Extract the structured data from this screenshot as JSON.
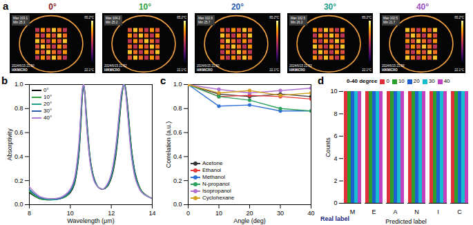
{
  "chart_data": [
    {
      "type": "image",
      "panel": "a",
      "max_label": "Max",
      "min_label": "Min",
      "brand": "HIKMICRO",
      "scale_max": "65.2°C",
      "scale_min": "22.1°C",
      "images": [
        {
          "title": "0°",
          "color": "#8b1c1c",
          "max": 103.1,
          "min": 25.3,
          "time": "2024/6/15 21:50"
        },
        {
          "title": "10°",
          "color": "#2e9e3e",
          "max": 104.2,
          "min": 25.2,
          "time": "2024/6/15 21:52"
        },
        {
          "title": "20°",
          "color": "#2a5db0",
          "max": 102.6,
          "min": 25.7,
          "time": "2024/6/15 21:50"
        },
        {
          "title": "30°",
          "color": "#1f9e8a",
          "max": 102.5,
          "min": 26.3,
          "time": "2024/6/15 21:53"
        },
        {
          "title": "40°",
          "color": "#9a4fc0",
          "max": 102.5,
          "min": 21.7,
          "time": "2024/6/15 21:59"
        }
      ]
    },
    {
      "type": "line",
      "panel": "b",
      "x_label": "Wavelength (μm)",
      "y_label": "Absorptivity",
      "legend": "upper left",
      "x": [
        8,
        8.5,
        9,
        9.5,
        9.8,
        10,
        10.2,
        10.4,
        10.5,
        10.6,
        10.65,
        10.7,
        10.8,
        11,
        11.2,
        11.4,
        11.6,
        11.8,
        12,
        12.2,
        12.4,
        12.5,
        12.6,
        12.65,
        12.7,
        12.8,
        13,
        13.2,
        13.5,
        14
      ],
      "series": [
        {
          "name": "0°",
          "color": "#000000",
          "values": [
            0.1,
            0.05,
            0.04,
            0.05,
            0.07,
            0.1,
            0.17,
            0.38,
            0.62,
            0.93,
            1.0,
            0.95,
            0.72,
            0.35,
            0.2,
            0.14,
            0.13,
            0.15,
            0.22,
            0.38,
            0.7,
            0.88,
            0.99,
            1.0,
            0.97,
            0.82,
            0.45,
            0.24,
            0.11,
            0.05
          ]
        },
        {
          "name": "10°",
          "color": "#2e9e3e",
          "values": [
            0.11,
            0.05,
            0.04,
            0.05,
            0.07,
            0.11,
            0.18,
            0.4,
            0.65,
            0.95,
            1.0,
            0.94,
            0.7,
            0.34,
            0.2,
            0.14,
            0.13,
            0.15,
            0.23,
            0.4,
            0.72,
            0.9,
            0.99,
            1.0,
            0.96,
            0.8,
            0.44,
            0.23,
            0.11,
            0.05
          ]
        },
        {
          "name": "20°",
          "color": "#1f9e8a",
          "values": [
            0.12,
            0.06,
            0.04,
            0.05,
            0.08,
            0.11,
            0.19,
            0.42,
            0.68,
            0.96,
            1.0,
            0.93,
            0.68,
            0.33,
            0.19,
            0.14,
            0.13,
            0.16,
            0.24,
            0.42,
            0.74,
            0.91,
            1.0,
            0.99,
            0.95,
            0.78,
            0.42,
            0.22,
            0.1,
            0.05
          ]
        },
        {
          "name": "30°",
          "color": "#2a5db0",
          "values": [
            0.13,
            0.06,
            0.05,
            0.05,
            0.08,
            0.12,
            0.2,
            0.45,
            0.71,
            0.97,
            1.0,
            0.92,
            0.66,
            0.32,
            0.19,
            0.14,
            0.13,
            0.16,
            0.25,
            0.44,
            0.77,
            0.93,
            1.0,
            0.99,
            0.94,
            0.76,
            0.4,
            0.21,
            0.1,
            0.05
          ]
        },
        {
          "name": "40°",
          "color": "#b07fd0",
          "values": [
            0.15,
            0.07,
            0.05,
            0.06,
            0.09,
            0.13,
            0.22,
            0.48,
            0.74,
            0.98,
            1.0,
            0.91,
            0.64,
            0.31,
            0.18,
            0.14,
            0.13,
            0.17,
            0.26,
            0.46,
            0.79,
            0.94,
            1.0,
            0.98,
            0.93,
            0.74,
            0.38,
            0.2,
            0.1,
            0.05
          ]
        }
      ],
      "xlim": [
        8,
        14
      ],
      "xticks": [
        8,
        10,
        12,
        14
      ],
      "ylim": [
        0,
        1.0
      ],
      "yticks": [
        {
          "value": 0,
          "label": "0.0"
        },
        {
          "value": 0.2,
          "label": "0.2"
        },
        {
          "value": 0.4,
          "label": "0.4"
        },
        {
          "value": 0.6,
          "label": "0.6"
        },
        {
          "value": 0.8,
          "label": "0.8"
        },
        {
          "value": 1.0,
          "label": "1.0"
        }
      ]
    },
    {
      "type": "line",
      "panel": "c",
      "x_label": "Angle (deg)",
      "y_label": "Correlation (a.u.)",
      "legend": "lower left",
      "marker": "circle",
      "x": [
        0,
        10,
        20,
        30,
        40
      ],
      "series": [
        {
          "name": "Acetone",
          "color": "#333333",
          "values": [
            1.0,
            0.92,
            0.9,
            0.92,
            0.9
          ]
        },
        {
          "name": "Ethanol",
          "color": "#e8393a",
          "values": [
            1.0,
            0.9,
            0.91,
            0.9,
            0.88
          ]
        },
        {
          "name": "Methanol",
          "color": "#2e6fd6",
          "values": [
            1.0,
            0.82,
            0.83,
            0.78,
            0.78
          ]
        },
        {
          "name": "N-propanol",
          "color": "#2aa05a",
          "values": [
            1.0,
            0.9,
            0.87,
            0.8,
            0.78
          ]
        },
        {
          "name": "Isopropanol",
          "color": "#b070d0",
          "values": [
            1.0,
            0.96,
            0.93,
            0.95,
            0.97
          ]
        },
        {
          "name": "Cyclohexane",
          "color": "#d4a020",
          "values": [
            1.0,
            0.93,
            0.95,
            0.91,
            0.93
          ]
        }
      ],
      "xlim": [
        0,
        40
      ],
      "xticks": [
        0,
        10,
        20,
        30,
        40
      ],
      "ylim": [
        0,
        1.0
      ],
      "yticks": [
        {
          "value": 0,
          "label": "0.0"
        },
        {
          "value": 0.2,
          "label": "0.2"
        },
        {
          "value": 0.4,
          "label": "0.4"
        },
        {
          "value": 0.6,
          "label": "0.6"
        },
        {
          "value": 0.8,
          "label": "0.8"
        },
        {
          "value": 1.0,
          "label": "1.0"
        }
      ]
    },
    {
      "type": "bar",
      "panel": "d",
      "x_label": "Predicted label",
      "depth_label": "Real label",
      "y_label": "Counts",
      "legend": "top",
      "legend_title": "0-40 degree",
      "categories": [
        "M",
        "E",
        "A",
        "N",
        "I",
        "C"
      ],
      "series": [
        {
          "name": "0",
          "color": "#e0303a",
          "values": [
            10,
            10,
            10,
            10,
            10,
            10
          ]
        },
        {
          "name": "10",
          "color": "#2ca02c",
          "values": [
            10,
            10,
            10,
            10,
            10,
            10
          ]
        },
        {
          "name": "20",
          "color": "#1f5fd0",
          "values": [
            10,
            10,
            10,
            10,
            10,
            10
          ]
        },
        {
          "name": "30",
          "color": "#17becf",
          "values": [
            10,
            10,
            10,
            10,
            10,
            10
          ]
        },
        {
          "name": "40",
          "color": "#c040c0",
          "values": [
            10,
            10,
            10,
            10,
            10,
            10
          ]
        }
      ],
      "ylim": [
        0,
        10
      ],
      "yticks": [
        0,
        2,
        4,
        6,
        8,
        10
      ]
    }
  ]
}
